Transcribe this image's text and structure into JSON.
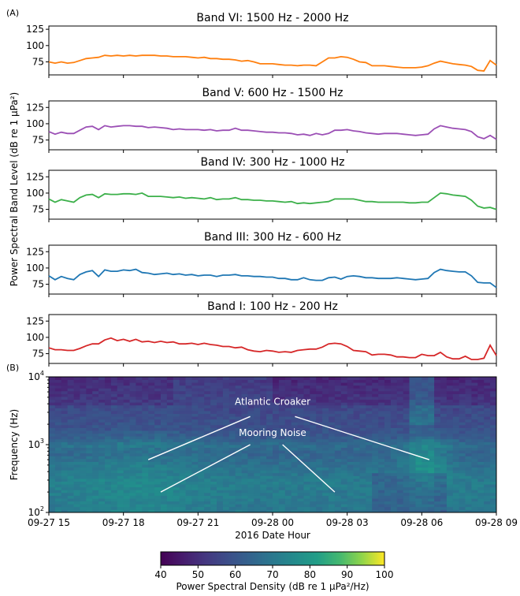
{
  "figure": {
    "panel_a_label": "(A)",
    "panel_b_label": "(B)",
    "shared_ylabel": "Power Spectral Band Level (dB re 1 μPa²)"
  },
  "chart_data": [
    {
      "type": "line",
      "title": "Band VI: 1500 Hz - 2000 Hz",
      "color": "#ff7f0e",
      "ylim": [
        55,
        130
      ],
      "yticks": [
        75,
        100,
        125
      ],
      "x_range_hours": [
        0,
        18
      ],
      "x": [
        0,
        0.25,
        0.5,
        0.75,
        1,
        1.25,
        1.5,
        1.75,
        2,
        2.25,
        2.5,
        2.75,
        3,
        3.25,
        3.5,
        3.75,
        4,
        4.25,
        4.5,
        4.75,
        5,
        5.25,
        5.5,
        5.75,
        6,
        6.25,
        6.5,
        6.75,
        7,
        7.25,
        7.5,
        7.75,
        8,
        8.25,
        8.5,
        8.75,
        9,
        9.25,
        9.5,
        9.75,
        10,
        10.25,
        10.5,
        10.75,
        11,
        11.25,
        11.5,
        11.75,
        12,
        12.25,
        12.5,
        12.75,
        13,
        13.25,
        13.5,
        13.75,
        14,
        14.25,
        14.5,
        14.75,
        15,
        15.25,
        15.5,
        15.75,
        16,
        16.25,
        16.5,
        16.75,
        17,
        17.25,
        17.5,
        17.75,
        18
      ],
      "values": [
        75,
        73,
        75,
        73,
        74,
        77,
        80,
        81,
        82,
        85,
        84,
        85,
        84,
        85,
        84,
        85,
        85,
        85,
        84,
        84,
        83,
        83,
        83,
        82,
        81,
        82,
        80,
        80,
        79,
        79,
        78,
        76,
        77,
        75,
        72,
        72,
        72,
        71,
        70,
        70,
        69,
        70,
        70,
        69,
        75,
        81,
        81,
        83,
        82,
        79,
        75,
        74,
        69,
        69,
        69,
        68,
        67,
        66,
        66,
        66,
        67,
        69,
        73,
        76,
        74,
        72,
        71,
        70,
        68,
        62,
        61,
        77,
        70
      ]
    },
    {
      "type": "line",
      "title": "Band V: 600 Hz - 1500 Hz",
      "color": "#9b4fb5",
      "ylim": [
        60,
        135
      ],
      "yticks": [
        75,
        100,
        125
      ],
      "x_range_hours": [
        0,
        18
      ],
      "x": [
        0,
        0.25,
        0.5,
        0.75,
        1,
        1.25,
        1.5,
        1.75,
        2,
        2.25,
        2.5,
        2.75,
        3,
        3.25,
        3.5,
        3.75,
        4,
        4.25,
        4.5,
        4.75,
        5,
        5.25,
        5.5,
        5.75,
        6,
        6.25,
        6.5,
        6.75,
        7,
        7.25,
        7.5,
        7.75,
        8,
        8.25,
        8.5,
        8.75,
        9,
        9.25,
        9.5,
        9.75,
        10,
        10.25,
        10.5,
        10.75,
        11,
        11.25,
        11.5,
        11.75,
        12,
        12.25,
        12.5,
        12.75,
        13,
        13.25,
        13.5,
        13.75,
        14,
        14.25,
        14.5,
        14.75,
        15,
        15.25,
        15.5,
        15.75,
        16,
        16.25,
        16.5,
        16.75,
        17,
        17.25,
        17.5,
        17.75,
        18
      ],
      "values": [
        88,
        84,
        87,
        85,
        85,
        90,
        95,
        96,
        91,
        97,
        95,
        96,
        97,
        97,
        96,
        96,
        94,
        95,
        94,
        93,
        91,
        92,
        91,
        91,
        91,
        90,
        91,
        89,
        90,
        90,
        93,
        90,
        90,
        89,
        88,
        87,
        87,
        86,
        86,
        85,
        83,
        84,
        82,
        85,
        83,
        85,
        90,
        90,
        91,
        89,
        88,
        86,
        85,
        84,
        85,
        85,
        85,
        84,
        83,
        82,
        83,
        84,
        92,
        97,
        95,
        93,
        92,
        91,
        88,
        80,
        77,
        82,
        76
      ]
    },
    {
      "type": "line",
      "title": "Band IV: 300 Hz - 1000 Hz",
      "color": "#3cb04a",
      "ylim": [
        60,
        135
      ],
      "yticks": [
        75,
        100,
        125
      ],
      "x_range_hours": [
        0,
        18
      ],
      "x": [
        0,
        0.25,
        0.5,
        0.75,
        1,
        1.25,
        1.5,
        1.75,
        2,
        2.25,
        2.5,
        2.75,
        3,
        3.25,
        3.5,
        3.75,
        4,
        4.25,
        4.5,
        4.75,
        5,
        5.25,
        5.5,
        5.75,
        6,
        6.25,
        6.5,
        6.75,
        7,
        7.25,
        7.5,
        7.75,
        8,
        8.25,
        8.5,
        8.75,
        9,
        9.25,
        9.5,
        9.75,
        10,
        10.25,
        10.5,
        10.75,
        11,
        11.25,
        11.5,
        11.75,
        12,
        12.25,
        12.5,
        12.75,
        13,
        13.25,
        13.5,
        13.75,
        14,
        14.25,
        14.5,
        14.75,
        15,
        15.25,
        15.5,
        15.75,
        16,
        16.25,
        16.5,
        16.75,
        17,
        17.25,
        17.5,
        17.75,
        18
      ],
      "values": [
        91,
        86,
        90,
        88,
        86,
        93,
        97,
        98,
        93,
        99,
        98,
        98,
        99,
        99,
        98,
        100,
        95,
        95,
        95,
        94,
        93,
        94,
        92,
        93,
        92,
        91,
        93,
        90,
        91,
        91,
        93,
        90,
        90,
        89,
        89,
        88,
        88,
        87,
        86,
        87,
        84,
        85,
        84,
        85,
        86,
        87,
        91,
        91,
        91,
        91,
        89,
        87,
        87,
        86,
        86,
        86,
        86,
        86,
        85,
        85,
        86,
        86,
        93,
        100,
        99,
        97,
        96,
        95,
        89,
        80,
        77,
        78,
        75
      ]
    },
    {
      "type": "line",
      "title": "Band III: 300 Hz - 600 Hz",
      "color": "#1f77b4",
      "ylim": [
        60,
        135
      ],
      "yticks": [
        75,
        100,
        125
      ],
      "x_range_hours": [
        0,
        18
      ],
      "x": [
        0,
        0.25,
        0.5,
        0.75,
        1,
        1.25,
        1.5,
        1.75,
        2,
        2.25,
        2.5,
        2.75,
        3,
        3.25,
        3.5,
        3.75,
        4,
        4.25,
        4.5,
        4.75,
        5,
        5.25,
        5.5,
        5.75,
        6,
        6.25,
        6.5,
        6.75,
        7,
        7.25,
        7.5,
        7.75,
        8,
        8.25,
        8.5,
        8.75,
        9,
        9.25,
        9.5,
        9.75,
        10,
        10.25,
        10.5,
        10.75,
        11,
        11.25,
        11.5,
        11.75,
        12,
        12.25,
        12.5,
        12.75,
        13,
        13.25,
        13.5,
        13.75,
        14,
        14.25,
        14.5,
        14.75,
        15,
        15.25,
        15.5,
        15.75,
        16,
        16.25,
        16.5,
        16.75,
        17,
        17.25,
        17.5,
        17.75,
        18
      ],
      "values": [
        88,
        82,
        87,
        84,
        82,
        90,
        94,
        96,
        87,
        97,
        95,
        95,
        97,
        96,
        98,
        93,
        92,
        90,
        91,
        92,
        90,
        91,
        89,
        90,
        88,
        89,
        89,
        87,
        89,
        89,
        90,
        88,
        88,
        87,
        87,
        86,
        86,
        84,
        84,
        82,
        82,
        85,
        82,
        81,
        81,
        85,
        86,
        83,
        87,
        88,
        87,
        85,
        85,
        84,
        84,
        84,
        85,
        84,
        83,
        82,
        83,
        84,
        93,
        98,
        96,
        95,
        94,
        94,
        88,
        78,
        77,
        77,
        70
      ]
    },
    {
      "type": "line",
      "title": "Band I: 100 Hz - 200 Hz",
      "color": "#d62728",
      "ylim": [
        60,
        135
      ],
      "yticks": [
        75,
        100,
        125
      ],
      "x_range_hours": [
        0,
        18
      ],
      "x": [
        0,
        0.25,
        0.5,
        0.75,
        1,
        1.25,
        1.5,
        1.75,
        2,
        2.25,
        2.5,
        2.75,
        3,
        3.25,
        3.5,
        3.75,
        4,
        4.25,
        4.5,
        4.75,
        5,
        5.25,
        5.5,
        5.75,
        6,
        6.25,
        6.5,
        6.75,
        7,
        7.25,
        7.5,
        7.75,
        8,
        8.25,
        8.5,
        8.75,
        9,
        9.25,
        9.5,
        9.75,
        10,
        10.25,
        10.5,
        10.75,
        11,
        11.25,
        11.5,
        11.75,
        12,
        12.25,
        12.5,
        12.75,
        13,
        13.25,
        13.5,
        13.75,
        14,
        14.25,
        14.5,
        14.75,
        15,
        15.25,
        15.5,
        15.75,
        16,
        16.25,
        16.5,
        16.75,
        17,
        17.25,
        17.5,
        17.75,
        18
      ],
      "values": [
        84,
        81,
        81,
        80,
        80,
        83,
        87,
        90,
        90,
        96,
        99,
        95,
        97,
        94,
        97,
        93,
        94,
        92,
        94,
        92,
        93,
        90,
        90,
        91,
        89,
        91,
        89,
        88,
        86,
        86,
        84,
        85,
        81,
        79,
        78,
        80,
        79,
        77,
        78,
        77,
        80,
        81,
        82,
        82,
        85,
        90,
        91,
        90,
        86,
        80,
        79,
        78,
        73,
        74,
        74,
        73,
        70,
        70,
        69,
        69,
        74,
        72,
        72,
        77,
        70,
        67,
        67,
        71,
        66,
        66,
        68,
        88,
        72
      ]
    },
    {
      "type": "heatmap",
      "ylabel": "Frequency (Hz)",
      "xlabel": "2016 Date Hour",
      "y_scale": "log",
      "ylim": [
        100,
        10000
      ],
      "ytick_exponents": [
        "2",
        "3",
        "4"
      ],
      "xlim_hours": [
        0,
        18
      ],
      "xticks": [
        {
          "hour": 0,
          "label": "09-27 15"
        },
        {
          "hour": 3,
          "label": "09-27 18"
        },
        {
          "hour": 6,
          "label": "09-27 21"
        },
        {
          "hour": 9,
          "label": "09-28 00"
        },
        {
          "hour": 12,
          "label": "09-28 03"
        },
        {
          "hour": 15,
          "label": "09-28 06"
        },
        {
          "hour": 18,
          "label": "09-28 09"
        }
      ],
      "colorbar": {
        "label": "Power Spectral Density (dB re 1 μPa²/Hz)",
        "range": [
          40,
          100
        ],
        "ticks": [
          40,
          50,
          60,
          70,
          80,
          90,
          100
        ],
        "colormap": "viridis"
      },
      "annotations": [
        {
          "text": "Atlantic Croaker",
          "hour": 9.0,
          "freq": 4300,
          "pointers": [
            {
              "from_hour": 8.1,
              "from_freq": 2600,
              "to_hour": 4.0,
              "to_freq": 600
            },
            {
              "from_hour": 9.9,
              "from_freq": 2600,
              "to_hour": 15.3,
              "to_freq": 600
            }
          ]
        },
        {
          "text": "Mooring Noise",
          "hour": 9.0,
          "freq": 1500,
          "pointers": [
            {
              "from_hour": 8.1,
              "from_freq": 1000,
              "to_hour": 4.5,
              "to_freq": 200
            },
            {
              "from_hour": 9.4,
              "from_freq": 1000,
              "to_hour": 11.5,
              "to_freq": 200
            }
          ]
        }
      ]
    }
  ]
}
